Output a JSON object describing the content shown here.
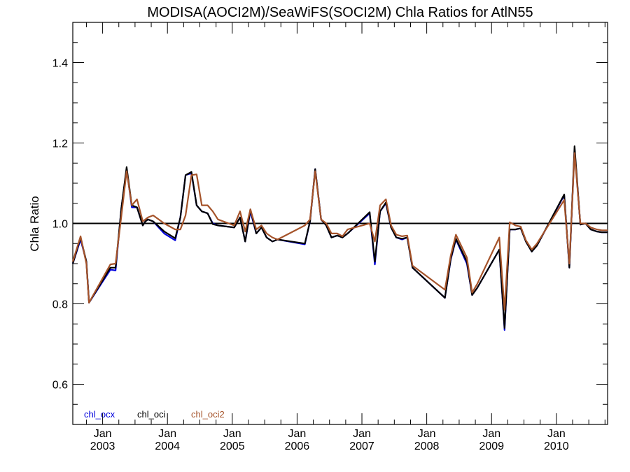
{
  "chart_data": {
    "type": "line",
    "title": "MODISA(AOCI2M)/SeaWiFS(SOCI2M)  Chla Ratios for AtlN55",
    "ylabel": "Chla Ratio",
    "xlabel": "",
    "xlim": [
      2002.54,
      2010.79
    ],
    "ylim": [
      0.5,
      1.5
    ],
    "y_ticks": [
      0.6,
      0.8,
      1.0,
      1.2,
      1.4
    ],
    "y_tick_labels": [
      "0.6",
      "0.8",
      "1.0",
      "1.2",
      "1.4"
    ],
    "x_ticks": [
      {
        "month": "Jan",
        "year": "2003",
        "value": 2003.0
      },
      {
        "month": "Jan",
        "year": "2004",
        "value": 2004.0
      },
      {
        "month": "Jan",
        "year": "2005",
        "value": 2005.0
      },
      {
        "month": "Jan",
        "year": "2006",
        "value": 2006.0
      },
      {
        "month": "Jan",
        "year": "2007",
        "value": 2007.0
      },
      {
        "month": "Jan",
        "year": "2008",
        "value": 2008.0
      },
      {
        "month": "Jan",
        "year": "2009",
        "value": 2009.0
      },
      {
        "month": "Jan",
        "year": "2010",
        "value": 2010.0
      }
    ],
    "reference_line": 1.0,
    "grid": false,
    "legend_position": "bottom-left",
    "series": [
      {
        "name": "chl_ocx",
        "color": "#0000dd",
        "x": [
          2002.54,
          2002.66,
          2002.75,
          2002.79,
          2003.12,
          2003.2,
          2003.29,
          2003.37,
          2003.45,
          2003.53,
          2003.62,
          2003.66,
          2003.7,
          2003.78,
          2003.95,
          2004.12,
          2004.2,
          2004.28,
          2004.37,
          2004.45,
          2004.53,
          2004.62,
          2004.7,
          2004.78,
          2005.03,
          2005.12,
          2005.2,
          2005.28,
          2005.37,
          2005.45,
          2005.53,
          2005.62,
          2005.7,
          2006.12,
          2006.2,
          2006.28,
          2006.37,
          2006.45,
          2006.53,
          2006.62,
          2006.7,
          2006.78,
          2007.12,
          2007.2,
          2007.28,
          2007.37,
          2007.45,
          2007.53,
          2007.62,
          2007.7,
          2007.78,
          2008.28,
          2008.37,
          2008.45,
          2008.62,
          2008.7,
          2008.78,
          2009.12,
          2009.2,
          2009.28,
          2009.37,
          2009.45,
          2009.53,
          2009.62,
          2009.7,
          2010.12,
          2010.2,
          2010.28,
          2010.37,
          2010.45,
          2010.53,
          2010.62,
          2010.7,
          2010.79
        ],
        "values": [
          0.9,
          0.96,
          0.905,
          0.803,
          0.885,
          0.883,
          1.04,
          1.135,
          1.04,
          1.04,
          0.995,
          1.005,
          1.01,
          1.005,
          0.975,
          0.958,
          1.015,
          1.12,
          1.125,
          1.045,
          1.03,
          1.025,
          1.0,
          0.995,
          0.99,
          1.015,
          0.955,
          1.03,
          0.975,
          0.99,
          0.965,
          0.955,
          0.96,
          0.948,
          1.005,
          1.135,
          1.01,
          0.995,
          0.965,
          0.97,
          0.965,
          0.975,
          1.025,
          0.898,
          1.03,
          1.05,
          0.99,
          0.965,
          0.96,
          0.965,
          0.89,
          0.815,
          0.91,
          0.96,
          0.9,
          0.822,
          0.84,
          0.935,
          0.735,
          0.985,
          0.985,
          0.988,
          0.955,
          0.93,
          0.945,
          1.07,
          0.89,
          1.185,
          0.997,
          1.0,
          0.985,
          0.98,
          0.978,
          0.978
        ]
      },
      {
        "name": "chl_oci",
        "color": "#000000",
        "x": [
          2002.54,
          2002.66,
          2002.75,
          2002.79,
          2003.12,
          2003.2,
          2003.29,
          2003.37,
          2003.45,
          2003.53,
          2003.62,
          2003.66,
          2003.7,
          2003.78,
          2003.95,
          2004.12,
          2004.2,
          2004.28,
          2004.37,
          2004.45,
          2004.53,
          2004.62,
          2004.7,
          2004.78,
          2005.03,
          2005.12,
          2005.2,
          2005.28,
          2005.37,
          2005.45,
          2005.53,
          2005.62,
          2005.7,
          2006.12,
          2006.2,
          2006.28,
          2006.37,
          2006.45,
          2006.53,
          2006.62,
          2006.7,
          2006.78,
          2007.12,
          2007.2,
          2007.28,
          2007.37,
          2007.45,
          2007.53,
          2007.62,
          2007.7,
          2007.78,
          2008.28,
          2008.37,
          2008.45,
          2008.62,
          2008.7,
          2008.78,
          2009.12,
          2009.2,
          2009.28,
          2009.37,
          2009.45,
          2009.53,
          2009.62,
          2009.7,
          2010.12,
          2010.2,
          2010.28,
          2010.37,
          2010.45,
          2010.53,
          2010.62,
          2010.7,
          2010.79
        ],
        "values": [
          0.9,
          0.965,
          0.905,
          0.803,
          0.89,
          0.89,
          1.04,
          1.14,
          1.045,
          1.04,
          0.995,
          1.005,
          1.01,
          1.005,
          0.98,
          0.963,
          1.015,
          1.12,
          1.128,
          1.045,
          1.03,
          1.025,
          0.998,
          0.995,
          0.99,
          1.015,
          0.955,
          1.035,
          0.975,
          0.99,
          0.965,
          0.955,
          0.96,
          0.95,
          1.005,
          1.135,
          1.01,
          0.995,
          0.965,
          0.97,
          0.965,
          0.975,
          1.028,
          0.905,
          1.03,
          1.052,
          0.99,
          0.965,
          0.962,
          0.965,
          0.89,
          0.815,
          0.912,
          0.962,
          0.905,
          0.822,
          0.84,
          0.935,
          0.74,
          0.985,
          0.985,
          0.988,
          0.955,
          0.93,
          0.945,
          1.072,
          0.89,
          1.192,
          0.997,
          1.0,
          0.985,
          0.98,
          0.978,
          0.978
        ]
      },
      {
        "name": "chl_oci2",
        "color": "#a5532a",
        "x": [
          2002.54,
          2002.66,
          2002.75,
          2002.79,
          2003.12,
          2003.2,
          2003.29,
          2003.37,
          2003.45,
          2003.53,
          2003.62,
          2003.66,
          2003.7,
          2003.78,
          2003.95,
          2004.12,
          2004.2,
          2004.28,
          2004.37,
          2004.45,
          2004.53,
          2004.62,
          2004.7,
          2004.78,
          2005.03,
          2005.12,
          2005.2,
          2005.28,
          2005.37,
          2005.45,
          2005.53,
          2005.62,
          2005.7,
          2006.12,
          2006.2,
          2006.28,
          2006.37,
          2006.45,
          2006.53,
          2006.62,
          2006.7,
          2006.78,
          2007.12,
          2007.2,
          2007.28,
          2007.37,
          2007.45,
          2007.53,
          2007.62,
          2007.7,
          2007.78,
          2008.28,
          2008.37,
          2008.45,
          2008.62,
          2008.7,
          2008.78,
          2009.12,
          2009.2,
          2009.28,
          2009.37,
          2009.45,
          2009.53,
          2009.62,
          2009.7,
          2010.12,
          2010.2,
          2010.28,
          2010.37,
          2010.45,
          2010.53,
          2010.62,
          2010.7,
          2010.79
        ],
        "values": [
          0.905,
          0.968,
          0.9,
          0.803,
          0.898,
          0.9,
          1.02,
          1.13,
          1.045,
          1.06,
          1.005,
          1.01,
          1.015,
          1.02,
          1.0,
          0.985,
          0.985,
          1.02,
          1.12,
          1.122,
          1.045,
          1.045,
          1.03,
          1.01,
          0.995,
          1.03,
          0.98,
          1.035,
          0.985,
          0.995,
          0.975,
          0.965,
          0.96,
          0.995,
          1.01,
          1.13,
          1.01,
          1.0,
          0.975,
          0.975,
          0.968,
          0.985,
          1.0,
          0.955,
          1.045,
          1.06,
          0.995,
          0.972,
          0.968,
          0.97,
          0.895,
          0.835,
          0.92,
          0.972,
          0.915,
          0.828,
          0.85,
          0.965,
          0.785,
          1.003,
          0.995,
          0.992,
          0.958,
          0.935,
          0.95,
          1.058,
          0.9,
          1.175,
          1.0,
          1.0,
          0.99,
          0.985,
          0.983,
          0.983
        ]
      }
    ]
  }
}
